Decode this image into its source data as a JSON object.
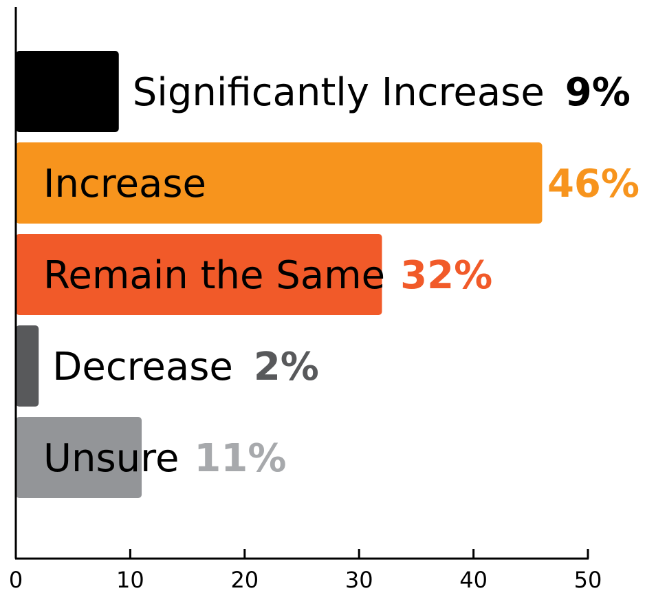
{
  "chart_data": {
    "type": "bar",
    "orientation": "horizontal",
    "title": "",
    "xlabel": "",
    "ylabel": "",
    "xlim": [
      0,
      50
    ],
    "x_ticks": [
      "0",
      "10",
      "20",
      "30",
      "40",
      "50"
    ],
    "grid": false,
    "legend": "none",
    "categories": [
      "Significantly Increase",
      "Increase",
      "Remain the Same",
      "Decrease",
      "Unsure"
    ],
    "values": [
      9,
      46,
      32,
      2,
      11
    ],
    "value_labels": [
      "9%",
      "46%",
      "32%",
      "2%",
      "11%"
    ],
    "bar_colors": [
      "#000000",
      "#f7941d",
      "#f15a29",
      "#58595b",
      "#939598"
    ],
    "value_label_colors": [
      "#000000",
      "#f7941d",
      "#f15a29",
      "#58595b",
      "#a7a9ac"
    ],
    "label_placement": [
      "outside",
      "inside",
      "inside",
      "outside",
      "inside"
    ]
  }
}
